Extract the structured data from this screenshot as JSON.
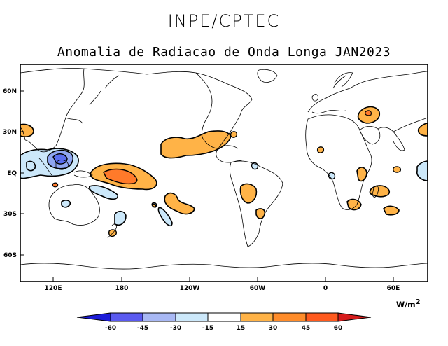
{
  "header": {
    "agency": "INPE/CPTEC",
    "title": "Anomalia de Radiacao de Onda Longa JAN2023"
  },
  "map": {
    "lat_labels": [
      "60N",
      "30N",
      "EQ",
      "30S",
      "60S"
    ],
    "lon_labels": [
      "120E",
      "180",
      "120W",
      "60W",
      "0",
      "60E"
    ],
    "anomaly_regions": [
      {
        "name": "central-pacific-positive",
        "value_range": "30 to 45"
      },
      {
        "name": "east-pacific-positive",
        "value_range": "15 to 30"
      },
      {
        "name": "maritime-continent-negative",
        "value_range": "-45 to -30"
      },
      {
        "name": "indian-ocean-negative",
        "value_range": "-30 to -15"
      },
      {
        "name": "south-america-positive",
        "value_range": "15 to 30"
      },
      {
        "name": "africa-positive",
        "value_range": "15 to 30"
      },
      {
        "name": "middle-east-positive",
        "value_range": "15 to 30"
      }
    ]
  },
  "colorbar": {
    "labels": [
      "-60",
      "-45",
      "-30",
      "-15",
      "15",
      "30",
      "45",
      "60"
    ],
    "colors": [
      "#1c1cd8",
      "#5a5af0",
      "#a8b8f4",
      "#cce8fa",
      "#ffffff",
      "#ffb347",
      "#ff8c2a",
      "#ff5a1e",
      "#d61c1c"
    ],
    "units": "W/m",
    "units_exp": "2"
  }
}
